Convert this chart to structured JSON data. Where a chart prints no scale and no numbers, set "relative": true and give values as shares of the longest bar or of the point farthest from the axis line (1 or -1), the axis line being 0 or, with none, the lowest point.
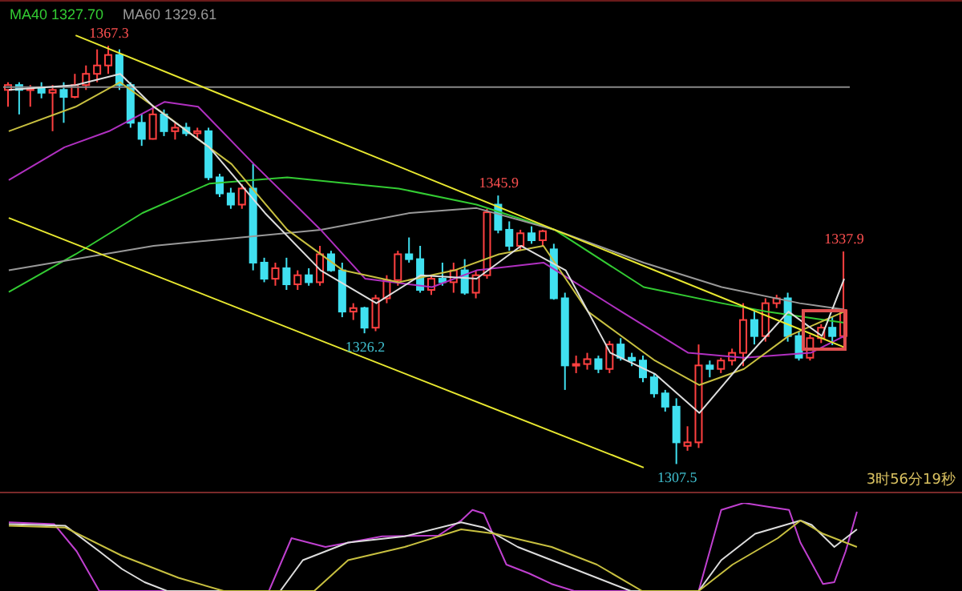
{
  "chart_data": [
    {
      "type": "candlestick",
      "tick_labels": false,
      "legend": "top left",
      "categories": [
        null,
        null,
        null,
        null,
        null,
        null,
        null,
        null,
        null,
        null,
        null,
        null,
        null,
        null,
        null,
        null,
        null,
        null,
        null,
        null,
        null,
        null,
        null,
        null,
        null,
        null,
        null,
        null,
        null,
        null,
        null,
        null,
        null,
        null,
        null,
        null,
        null,
        null,
        null,
        null,
        null,
        null,
        null,
        null,
        null,
        null,
        null,
        null,
        null,
        null,
        null,
        null,
        null,
        null,
        null,
        null,
        null,
        null,
        null,
        null,
        null,
        null,
        null,
        null,
        null,
        null,
        null,
        null,
        null,
        null,
        null,
        null,
        null,
        null,
        null,
        null
      ],
      "ohlc": [
        [
          1361.0,
          1362.1,
          1358.6,
          1361.7
        ],
        [
          1361.7,
          1362.1,
          1357.5,
          1361.0
        ],
        [
          1361.0,
          1361.7,
          1358.6,
          1361.2
        ],
        [
          1361.2,
          1362.1,
          1359.8,
          1360.6
        ],
        [
          1360.6,
          1361.7,
          1355.1,
          1361.0
        ],
        [
          1361.0,
          1362.1,
          1356.3,
          1360.0
        ],
        [
          1360.0,
          1363.3,
          1359.8,
          1361.7
        ],
        [
          1361.7,
          1364.5,
          1361.0,
          1363.3
        ],
        [
          1363.3,
          1366.8,
          1362.1,
          1364.5
        ],
        [
          1364.5,
          1367.3,
          1363.3,
          1366.0
        ],
        [
          1366.0,
          1366.8,
          1361.0,
          1361.7
        ],
        [
          1361.7,
          1362.1,
          1355.6,
          1356.3
        ],
        [
          1356.3,
          1357.5,
          1353.0,
          1354.0
        ],
        [
          1354.0,
          1358.6,
          1353.9,
          1357.5
        ],
        [
          1357.5,
          1358.2,
          1354.4,
          1355.1
        ],
        [
          1355.1,
          1356.3,
          1353.9,
          1355.6
        ],
        [
          1355.6,
          1356.3,
          1354.4,
          1354.8
        ],
        [
          1354.8,
          1355.6,
          1353.9,
          1355.1
        ],
        [
          1355.1,
          1355.6,
          1348.1,
          1348.5
        ],
        [
          1348.5,
          1349.0,
          1345.7,
          1346.2
        ],
        [
          1346.2,
          1347.0,
          1344.0,
          1344.6
        ],
        [
          1344.6,
          1347.5,
          1344.0,
          1346.9
        ],
        [
          1346.9,
          1350.4,
          1335.2,
          1336.3
        ],
        [
          1336.3,
          1337.0,
          1333.5,
          1334.0
        ],
        [
          1334.0,
          1336.3,
          1333.0,
          1335.5
        ],
        [
          1335.5,
          1337.0,
          1332.4,
          1333.2
        ],
        [
          1333.2,
          1335.2,
          1332.4,
          1334.5
        ],
        [
          1334.5,
          1335.5,
          1333.0,
          1333.5
        ],
        [
          1333.5,
          1338.7,
          1333.0,
          1337.5
        ],
        [
          1337.5,
          1338.0,
          1335.0,
          1335.2
        ],
        [
          1335.2,
          1336.3,
          1328.5,
          1329.3
        ],
        [
          1329.3,
          1330.5,
          1328.1,
          1329.8
        ],
        [
          1329.8,
          1330.0,
          1326.2,
          1327.0
        ],
        [
          1327.0,
          1331.7,
          1326.5,
          1331.2
        ],
        [
          1331.2,
          1334.5,
          1330.5,
          1333.8
        ],
        [
          1333.8,
          1338.0,
          1333.0,
          1337.5
        ],
        [
          1337.5,
          1339.9,
          1336.3,
          1336.8
        ],
        [
          1336.8,
          1338.7,
          1332.0,
          1332.4
        ],
        [
          1332.4,
          1334.5,
          1331.7,
          1334.0
        ],
        [
          1334.0,
          1336.3,
          1333.0,
          1333.5
        ],
        [
          1333.5,
          1336.3,
          1332.0,
          1335.2
        ],
        [
          1335.2,
          1336.8,
          1331.7,
          1332.0
        ],
        [
          1332.0,
          1335.2,
          1331.2,
          1334.5
        ],
        [
          1334.5,
          1344.0,
          1334.0,
          1343.5
        ],
        [
          1344.6,
          1345.9,
          1340.5,
          1341.0
        ],
        [
          1341.0,
          1342.2,
          1338.0,
          1338.7
        ],
        [
          1338.7,
          1341.0,
          1338.0,
          1340.5
        ],
        [
          1340.5,
          1341.5,
          1339.0,
          1339.5
        ],
        [
          1339.5,
          1341.0,
          1338.7,
          1340.8
        ],
        [
          1338.2,
          1339.0,
          1331.0,
          1331.2
        ],
        [
          1331.2,
          1332.0,
          1318.1,
          1321.6
        ],
        [
          1321.6,
          1323.0,
          1320.5,
          1321.8
        ],
        [
          1321.8,
          1323.4,
          1321.0,
          1322.5
        ],
        [
          1322.5,
          1323.0,
          1320.5,
          1321.1
        ],
        [
          1321.1,
          1325.1,
          1320.5,
          1324.6
        ],
        [
          1324.6,
          1325.5,
          1322.3,
          1322.7
        ],
        [
          1322.7,
          1323.4,
          1321.5,
          1322.3
        ],
        [
          1322.3,
          1323.0,
          1319.2,
          1319.9
        ],
        [
          1319.9,
          1320.5,
          1317.0,
          1317.6
        ],
        [
          1317.6,
          1318.1,
          1315.0,
          1315.7
        ],
        [
          1315.7,
          1316.9,
          1307.5,
          1310.6
        ],
        [
          1310.1,
          1312.9,
          1309.4,
          1310.6
        ],
        [
          1310.6,
          1324.6,
          1309.8,
          1321.6
        ],
        [
          1321.6,
          1322.3,
          1319.9,
          1321.1
        ],
        [
          1321.1,
          1322.7,
          1320.5,
          1322.3
        ],
        [
          1322.3,
          1324.0,
          1321.6,
          1323.4
        ],
        [
          1323.4,
          1330.5,
          1321.5,
          1328.1
        ],
        [
          1328.1,
          1329.3,
          1324.6,
          1325.8
        ],
        [
          1325.8,
          1331.2,
          1325.0,
          1330.5
        ],
        [
          1330.5,
          1331.7,
          1329.8,
          1331.2
        ],
        [
          1331.2,
          1332.0,
          1325.0,
          1325.8
        ],
        [
          1325.8,
          1326.5,
          1322.3,
          1322.7
        ],
        [
          1322.7,
          1326.0,
          1322.3,
          1325.5
        ],
        [
          1325.5,
          1327.5,
          1324.8,
          1327.0
        ],
        [
          1327.0,
          1328.5,
          1324.5,
          1325.8
        ],
        [
          1325.8,
          1337.9,
          1325.5,
          1329.5
        ]
      ],
      "colors": [
        "#ff4040",
        "#40e0f0",
        "#ff4040",
        "#40e0f0",
        "#ff4040",
        "#40e0f0",
        "#ff4040",
        "#ff4040",
        "#ff4040",
        "#ff4040",
        "#40e0f0",
        "#40e0f0",
        "#40e0f0",
        "#ff4040",
        "#40e0f0",
        "#ff4040",
        "#40e0f0",
        "#ff4040",
        "#40e0f0",
        "#40e0f0",
        "#40e0f0",
        "#ff4040",
        "#40e0f0",
        "#40e0f0",
        "#ff4040",
        "#40e0f0",
        "#ff4040",
        "#40e0f0",
        "#ff4040",
        "#40e0f0",
        "#40e0f0",
        "#ff4040",
        "#40e0f0",
        "#ff4040",
        "#ff4040",
        "#ff4040",
        "#40e0f0",
        "#40e0f0",
        "#ff4040",
        "#40e0f0",
        "#ff4040",
        "#40e0f0",
        "#ff4040",
        "#ff4040",
        "#40e0f0",
        "#40e0f0",
        "#ff4040",
        "#40e0f0",
        "#ff4040",
        "#40e0f0",
        "#40e0f0",
        "#ff4040",
        "#ff4040",
        "#40e0f0",
        "#ff4040",
        "#40e0f0",
        "#40e0f0",
        "#40e0f0",
        "#40e0f0",
        "#40e0f0",
        "#40e0f0",
        "#ff4040",
        "#ff4040",
        "#40e0f0",
        "#ff4040",
        "#ff4040",
        "#ff4040",
        "#40e0f0",
        "#ff4040",
        "#ff4040",
        "#40e0f0",
        "#40e0f0",
        "#ff4040",
        "#ff4040",
        "#40e0f0",
        "#ff4040"
      ],
      "series": [
        {
          "name": "MA40 1327.70",
          "type": "line",
          "color": "#33cc33",
          "values": [
            1332.1,
            null,
            null,
            null,
            null,
            null,
            1337.5,
            null,
            null,
            null,
            null,
            null,
            1343.4,
            null,
            null,
            null,
            null,
            null,
            1347.6,
            null,
            null,
            null,
            null,
            null,
            null,
            1348.5,
            null,
            null,
            null,
            null,
            null,
            null,
            null,
            null,
            null,
            1346.9,
            null,
            null,
            null,
            null,
            null,
            null,
            1344.6,
            null,
            null,
            null,
            null,
            null,
            null,
            1341.0,
            null,
            null,
            null,
            null,
            null,
            null,
            null,
            1332.8,
            null,
            null,
            null,
            null,
            null,
            null,
            1330.5,
            null,
            null,
            null,
            1329.3,
            null,
            null,
            null,
            null,
            null,
            null,
            1327.7
          ]
        },
        {
          "name": "MA60 1329.61",
          "type": "line",
          "color": "#999999",
          "values": [
            1335.2,
            null,
            null,
            null,
            null,
            null,
            null,
            null,
            null,
            null,
            null,
            null,
            null,
            1338.7,
            null,
            null,
            null,
            null,
            null,
            null,
            null,
            null,
            null,
            null,
            null,
            null,
            null,
            null,
            1341.0,
            null,
            null,
            null,
            null,
            null,
            null,
            null,
            1343.4,
            null,
            null,
            null,
            null,
            null,
            1344.1,
            null,
            null,
            null,
            null,
            null,
            null,
            1341.0,
            null,
            null,
            null,
            null,
            null,
            null,
            null,
            1336.3,
            null,
            null,
            null,
            null,
            null,
            null,
            1332.8,
            null,
            null,
            null,
            null,
            null,
            null,
            1330.5,
            null,
            null,
            null,
            1329.6
          ]
        },
        {
          "type": "line",
          "color": "#b030c0",
          "values": [
            1348.1,
            null,
            null,
            null,
            null,
            1352.8,
            null,
            null,
            null,
            1355.1,
            null,
            null,
            null,
            null,
            1359.3,
            null,
            null,
            1358.6,
            null,
            null,
            null,
            null,
            1350.4,
            null,
            null,
            null,
            null,
            null,
            1341.0,
            null,
            null,
            null,
            1334.0,
            null,
            null,
            null,
            null,
            null,
            1332.8,
            null,
            null,
            null,
            1335.2,
            null,
            null,
            null,
            null,
            null,
            1336.3,
            null,
            null,
            null,
            null,
            null,
            null,
            1329.3,
            null,
            null,
            null,
            null,
            null,
            1323.4,
            null,
            null,
            null,
            null,
            1322.7,
            null,
            null,
            null,
            null,
            null,
            1323.4,
            null,
            null,
            1325.8
          ]
        },
        {
          "type": "line",
          "color": "#c8c040",
          "values": [
            1355.1,
            null,
            null,
            null,
            null,
            null,
            1358.6,
            null,
            null,
            null,
            1362.1,
            null,
            null,
            null,
            1357.5,
            null,
            null,
            null,
            null,
            null,
            1350.4,
            null,
            null,
            null,
            null,
            1341.0,
            null,
            null,
            null,
            null,
            1335.2,
            null,
            null,
            null,
            null,
            1333.5,
            null,
            null,
            null,
            null,
            1335.2,
            null,
            null,
            null,
            1337.5,
            null,
            null,
            null,
            1338.7,
            null,
            null,
            null,
            1329.3,
            null,
            null,
            null,
            null,
            null,
            1322.3,
            null,
            null,
            null,
            1318.8,
            null,
            null,
            null,
            1321.1,
            null,
            null,
            null,
            1325.8,
            null,
            null,
            null,
            null,
            1329.3
          ]
        },
        {
          "type": "line",
          "color": "#dddddd",
          "values": [
            1361.0,
            null,
            null,
            null,
            null,
            null,
            1361.7,
            null,
            null,
            null,
            1363.3,
            null,
            null,
            1358.6,
            null,
            null,
            null,
            null,
            1352.8,
            null,
            null,
            null,
            null,
            1343.4,
            null,
            null,
            null,
            null,
            1335.2,
            null,
            null,
            null,
            null,
            1330.5,
            null,
            null,
            null,
            1334.5,
            null,
            null,
            null,
            null,
            1334.0,
            null,
            null,
            null,
            1338.7,
            null,
            null,
            null,
            1335.2,
            null,
            null,
            null,
            1323.4,
            null,
            null,
            null,
            1320.4,
            null,
            null,
            null,
            1314.8,
            null,
            null,
            null,
            1322.3,
            null,
            null,
            null,
            1329.3,
            null,
            null,
            1325.8,
            null,
            1334.0
          ]
        },
        {
          "type": "line",
          "color": "#e8e830",
          "values": [
            null,
            null,
            null,
            null,
            null,
            null,
            1368.8,
            null,
            null,
            null,
            null,
            null,
            null,
            null,
            null,
            null,
            null,
            null,
            null,
            null,
            null,
            null,
            null,
            null,
            null,
            null,
            null,
            null,
            null,
            null,
            null,
            null,
            null,
            null,
            null,
            null,
            null,
            null,
            null,
            null,
            null,
            null,
            null,
            null,
            null,
            null,
            null,
            null,
            null,
            null,
            null,
            null,
            null,
            null,
            null,
            null,
            null,
            null,
            null,
            null,
            null,
            null,
            null,
            null,
            null,
            null,
            null,
            null,
            null,
            null,
            null,
            null,
            null,
            null,
            null,
            1324.2
          ]
        },
        {
          "type": "line",
          "color": "#e8e830",
          "values": [
            1342.7,
            null,
            null,
            null,
            null,
            null,
            null,
            null,
            null,
            null,
            null,
            null,
            null,
            null,
            null,
            null,
            null,
            null,
            null,
            null,
            null,
            null,
            null,
            null,
            null,
            null,
            null,
            null,
            null,
            null,
            null,
            null,
            null,
            null,
            null,
            null,
            null,
            null,
            null,
            null,
            null,
            null,
            null,
            null,
            null,
            null,
            null,
            null,
            null,
            null,
            null,
            null,
            null,
            null,
            null,
            null,
            null,
            1307.0,
            null,
            null,
            null,
            null,
            null,
            null,
            null,
            null,
            null,
            null,
            null,
            null,
            null,
            null,
            null,
            null,
            null,
            null
          ]
        }
      ],
      "ref_lines": [
        {
          "axis": "y",
          "value": 1361.4,
          "color": "#888888"
        }
      ],
      "annotations": [
        {
          "text": "1367.3",
          "y": 1367.3
        },
        {
          "text": "1326.2",
          "y": 1326.2
        },
        {
          "text": "1345.9",
          "y": 1345.9
        },
        {
          "text": "1307.5",
          "y": 1307.5
        },
        {
          "text": "1337.9",
          "y": 1337.9
        },
        "3时56分19秒"
      ]
    },
    {
      "type": "line",
      "relative": true,
      "tick_labels": false,
      "categories": [
        null,
        null,
        null,
        null,
        null,
        null,
        null,
        null,
        null,
        null,
        null,
        null,
        null,
        null,
        null,
        null,
        null,
        null,
        null,
        null,
        null,
        null,
        null,
        null,
        null,
        null,
        null,
        null,
        null,
        null,
        null,
        null,
        null,
        null,
        null,
        null,
        null,
        null,
        null,
        null,
        null,
        null,
        null,
        null,
        null,
        null,
        null,
        null,
        null,
        null,
        null,
        null,
        null,
        null,
        null,
        null,
        null,
        null,
        null,
        null,
        null,
        null,
        null,
        null,
        null,
        null,
        null,
        null,
        null,
        null,
        null,
        null,
        null,
        null,
        null,
        null
      ],
      "series": [
        {
          "color": "#c040d0",
          "values": [
            0.78,
            null,
            null,
            null,
            0.76,
            null,
            0.45,
            null,
            0,
            null,
            null,
            null,
            null,
            null,
            null,
            null,
            null,
            null,
            null,
            null,
            null,
            null,
            null,
            0,
            null,
            0.6,
            null,
            null,
            0.5,
            null,
            null,
            null,
            null,
            0.62,
            null,
            null,
            null,
            null,
            0.63,
            null,
            0.8,
            0.92,
            0.88,
            null,
            0.3,
            null,
            0.2,
            null,
            0.08,
            null,
            0,
            null,
            null,
            null,
            null,
            null,
            null,
            null,
            null,
            null,
            null,
            0,
            null,
            0.92,
            null,
            1,
            null,
            0.96,
            null,
            0.92,
            0.55,
            null,
            0.08,
            0.1,
            0.45,
            0.9
          ]
        },
        {
          "color": "#dddddd",
          "values": [
            0.76,
            null,
            null,
            null,
            null,
            0.74,
            null,
            null,
            0.45,
            null,
            0.25,
            null,
            0.1,
            null,
            0,
            null,
            null,
            null,
            null,
            null,
            null,
            null,
            null,
            null,
            0,
            null,
            0.35,
            null,
            null,
            null,
            0.55,
            null,
            null,
            null,
            null,
            0.62,
            null,
            null,
            null,
            null,
            0.78,
            null,
            0.72,
            null,
            null,
            0.5,
            null,
            null,
            null,
            null,
            0.25,
            null,
            null,
            null,
            null,
            0,
            null,
            null,
            null,
            null,
            null,
            0,
            null,
            0.35,
            null,
            null,
            0.65,
            null,
            null,
            null,
            0.8,
            0.75,
            null,
            0.5,
            null,
            0.7
          ]
        },
        {
          "color": "#c8c040",
          "values": [
            0.74,
            null,
            null,
            null,
            null,
            0.72,
            null,
            null,
            null,
            null,
            0.4,
            null,
            null,
            null,
            null,
            0.15,
            null,
            null,
            null,
            0,
            null,
            null,
            null,
            null,
            null,
            null,
            null,
            0,
            null,
            null,
            0.35,
            null,
            null,
            null,
            null,
            0.5,
            null,
            null,
            null,
            null,
            0.7,
            null,
            null,
            0.65,
            null,
            null,
            null,
            null,
            0.5,
            null,
            null,
            null,
            0.3,
            null,
            null,
            null,
            0,
            null,
            null,
            null,
            null,
            0,
            null,
            null,
            0.3,
            null,
            null,
            null,
            0.6,
            null,
            0.8,
            null,
            0.65,
            null,
            null,
            0.5
          ]
        }
      ]
    }
  ]
}
